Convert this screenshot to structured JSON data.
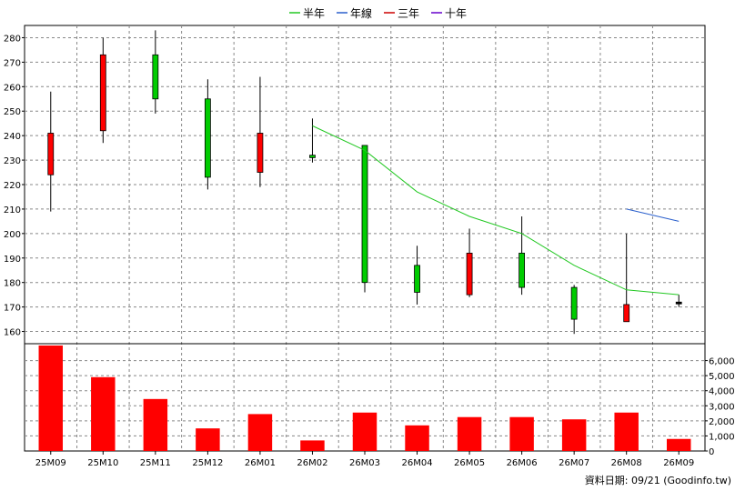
{
  "chart_data": [
    {
      "type": "candlestick",
      "categories": [
        "25M09",
        "25M10",
        "25M11",
        "25M12",
        "26M01",
        "26M02",
        "26M03",
        "26M04",
        "26M05",
        "26M06",
        "26M07",
        "26M08",
        "26M09"
      ],
      "ohlc": [
        {
          "open": 224,
          "high": 258,
          "low": 209,
          "close": 241
        },
        {
          "open": 242,
          "high": 280,
          "low": 237,
          "close": 273
        },
        {
          "open": 273,
          "high": 283,
          "low": 249,
          "close": 255
        },
        {
          "open": 255,
          "high": 263,
          "low": 218,
          "close": 223
        },
        {
          "open": 225,
          "high": 264,
          "low": 219,
          "close": 241
        },
        {
          "open": 232,
          "high": 247,
          "low": 229,
          "close": 231
        },
        {
          "open": 236,
          "high": 236,
          "low": 176,
          "close": 180
        },
        {
          "open": 187,
          "high": 195,
          "low": 171,
          "close": 176
        },
        {
          "open": 175,
          "high": 202,
          "low": 174,
          "close": 192
        },
        {
          "open": 192,
          "high": 207,
          "low": 175,
          "close": 178
        },
        {
          "open": 178,
          "high": 179,
          "low": 159,
          "close": 165
        },
        {
          "open": 164,
          "high": 200,
          "low": 164,
          "close": 171
        },
        {
          "open": 172,
          "high": 175,
          "low": 170,
          "close": 172
        }
      ],
      "candle_colors": {
        "up": "#ff0000",
        "down": "#00cc00",
        "flat": "#000000"
      },
      "series": [
        {
          "name": "半年",
          "color": "#22c822",
          "values": [
            null,
            null,
            null,
            null,
            null,
            244,
            234,
            217,
            207,
            200,
            187,
            177,
            175
          ]
        },
        {
          "name": "年線",
          "color": "#2a5fcc",
          "values": [
            null,
            null,
            null,
            null,
            null,
            null,
            null,
            null,
            null,
            null,
            null,
            210,
            205
          ]
        },
        {
          "name": "三年",
          "color": "#cc0000",
          "values": [
            null,
            null,
            null,
            null,
            null,
            null,
            null,
            null,
            null,
            null,
            null,
            null,
            null
          ]
        },
        {
          "name": "十年",
          "color": "#6600cc",
          "values": [
            null,
            null,
            null,
            null,
            null,
            null,
            null,
            null,
            null,
            null,
            null,
            null,
            null
          ]
        }
      ],
      "ylim": [
        155,
        285
      ],
      "yticks": [
        160,
        170,
        180,
        190,
        200,
        210,
        220,
        230,
        240,
        250,
        260,
        270,
        280
      ],
      "grid": true,
      "legend_position": "top-center"
    },
    {
      "type": "bar",
      "categories": [
        "25M09",
        "25M10",
        "25M11",
        "25M12",
        "26M01",
        "26M02",
        "26M03",
        "26M04",
        "26M05",
        "26M06",
        "26M07",
        "26M08",
        "26M09"
      ],
      "values": [
        7000,
        4900,
        3450,
        1500,
        2450,
        700,
        2550,
        1700,
        2250,
        2250,
        2100,
        2550,
        800
      ],
      "color": "#ff0000",
      "ylim": [
        0,
        7000
      ],
      "yticks": [
        "0",
        "1,000",
        "2,000",
        "3,000",
        "4,000",
        "5,000",
        "6,000"
      ],
      "ytick_values": [
        0,
        1000,
        2000,
        3000,
        4000,
        5000,
        6000
      ],
      "grid": true
    }
  ],
  "footer": "資料日期: 09/21  (Goodinfo.tw)"
}
